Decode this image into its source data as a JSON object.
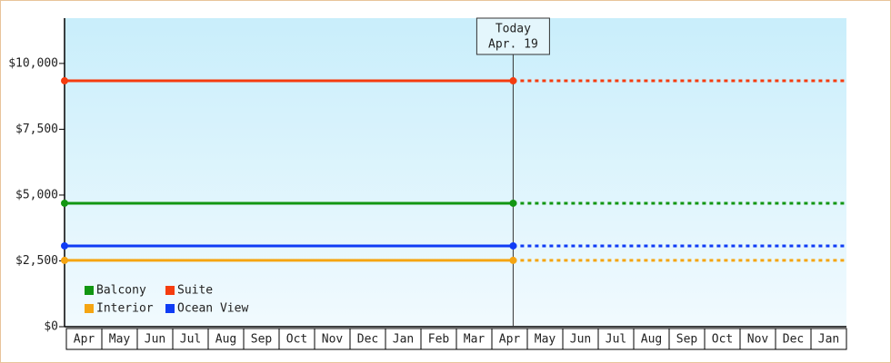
{
  "chart_data": {
    "type": "line",
    "categories": [
      "Apr",
      "May",
      "Jun",
      "Jul",
      "Aug",
      "Sep",
      "Oct",
      "Nov",
      "Dec",
      "Jan",
      "Feb",
      "Mar",
      "Apr",
      "May",
      "Jun",
      "Jul",
      "Aug",
      "Sep",
      "Oct",
      "Nov",
      "Dec",
      "Jan"
    ],
    "series": [
      {
        "name": "Balcony",
        "color": "#129612",
        "value": 4690
      },
      {
        "name": "Suite",
        "color": "#f53c0f",
        "value": 9340
      },
      {
        "name": "Interior",
        "color": "#f5a512",
        "value": 2520
      },
      {
        "name": "Ocean View",
        "color": "#0f3cf5",
        "value": 3070
      }
    ],
    "ylim": [
      0,
      11720
    ],
    "yticks": [
      {
        "value": 0,
        "label": "$0"
      },
      {
        "value": 2500,
        "label": "$2,500"
      },
      {
        "value": 5000,
        "label": "$5,000"
      },
      {
        "value": 7500,
        "label": "$7,500"
      },
      {
        "value": 10000,
        "label": "$10,000"
      }
    ],
    "today": {
      "title": "Today",
      "date": "Apr. 19",
      "category": 12
    },
    "legend": "lower left"
  }
}
